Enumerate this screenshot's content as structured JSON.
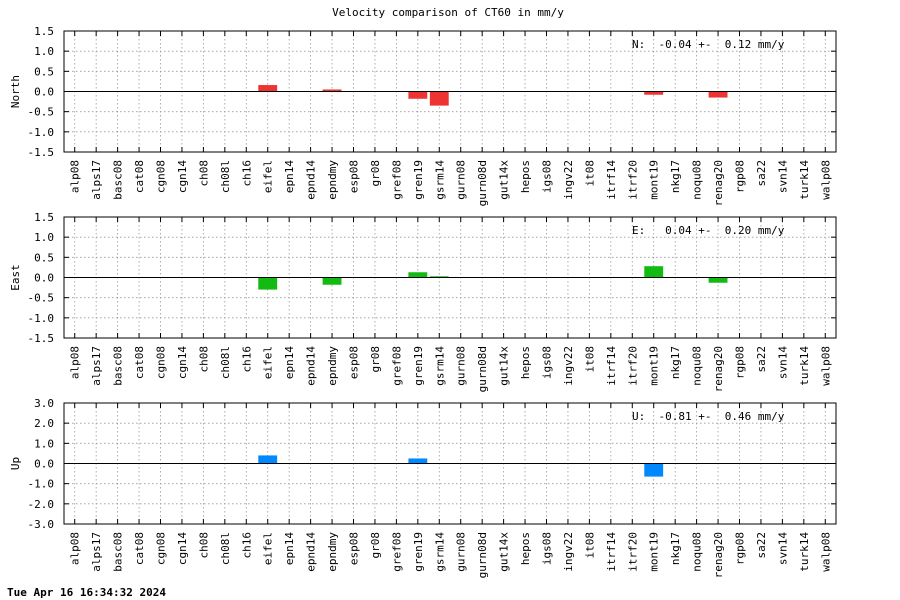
{
  "chart_data": {
    "type": "bar",
    "title": "Velocity comparison of CT60 in mm/y",
    "categories": [
      "alp08",
      "alps17",
      "basc08",
      "cat08",
      "cgn08",
      "cgn14",
      "ch08",
      "ch08l",
      "ch16",
      "eifel",
      "epn14",
      "epnd14",
      "epndmy",
      "esp08",
      "gr08",
      "gref08",
      "gren19",
      "gsrm14",
      "gurn08",
      "gurn08d",
      "gut14x",
      "hepos",
      "igs08",
      "ingv22",
      "it08",
      "itrf14",
      "itrf20",
      "mont19",
      "nkg17",
      "noqu08",
      "renag20",
      "rgp08",
      "sa22",
      "svn14",
      "turk14",
      "walp08"
    ],
    "grid": true,
    "panels": [
      {
        "ylabel": "North",
        "color": "#ee3333",
        "ylim": [
          -1.5,
          1.5
        ],
        "yticks": [
          "1.5",
          "1.0",
          "0.5",
          "0.0",
          "-0.5",
          "-1.0",
          "-1.5"
        ],
        "stat": "N:  -0.04 +-  0.12 mm/y",
        "values": [
          0,
          0,
          0,
          0,
          0,
          0,
          0,
          0,
          0,
          0.16,
          0,
          0,
          0.05,
          0,
          0,
          0,
          -0.18,
          -0.35,
          0,
          0,
          0,
          0,
          0,
          0,
          0,
          0,
          0,
          -0.08,
          0,
          0,
          -0.15,
          0,
          0,
          0,
          0,
          0
        ]
      },
      {
        "ylabel": "East",
        "color": "#11bb11",
        "ylim": [
          -1.5,
          1.5
        ],
        "yticks": [
          "1.5",
          "1.0",
          "0.5",
          "0.0",
          "-0.5",
          "-1.0",
          "-1.5"
        ],
        "stat": "E:   0.04 +-  0.20 mm/y",
        "values": [
          0,
          0,
          0,
          0,
          0,
          0,
          0,
          0,
          0,
          -0.3,
          0,
          0,
          -0.18,
          0,
          0,
          0,
          0.13,
          0.03,
          0,
          0,
          0,
          0,
          0,
          0,
          0,
          0,
          0,
          0.28,
          0,
          0,
          -0.13,
          0,
          0,
          0,
          0,
          0
        ]
      },
      {
        "ylabel": "Up",
        "color": "#0088ff",
        "ylim": [
          -3.0,
          3.0
        ],
        "yticks": [
          "3.0",
          "2.0",
          "1.0",
          "0.0",
          "-1.0",
          "-2.0",
          "-3.0"
        ],
        "stat": "U:  -0.81 +-  0.46 mm/y",
        "values": [
          0,
          0,
          0,
          0,
          0,
          0,
          0,
          0,
          0,
          0.4,
          0,
          0,
          0,
          0,
          0,
          0,
          0.25,
          0,
          0,
          0,
          0,
          0,
          0,
          0,
          0,
          0,
          0,
          -0.65,
          0,
          0,
          0,
          0,
          0,
          0,
          0,
          0
        ]
      }
    ]
  },
  "footer": "Tue Apr 16 16:34:32 2024"
}
